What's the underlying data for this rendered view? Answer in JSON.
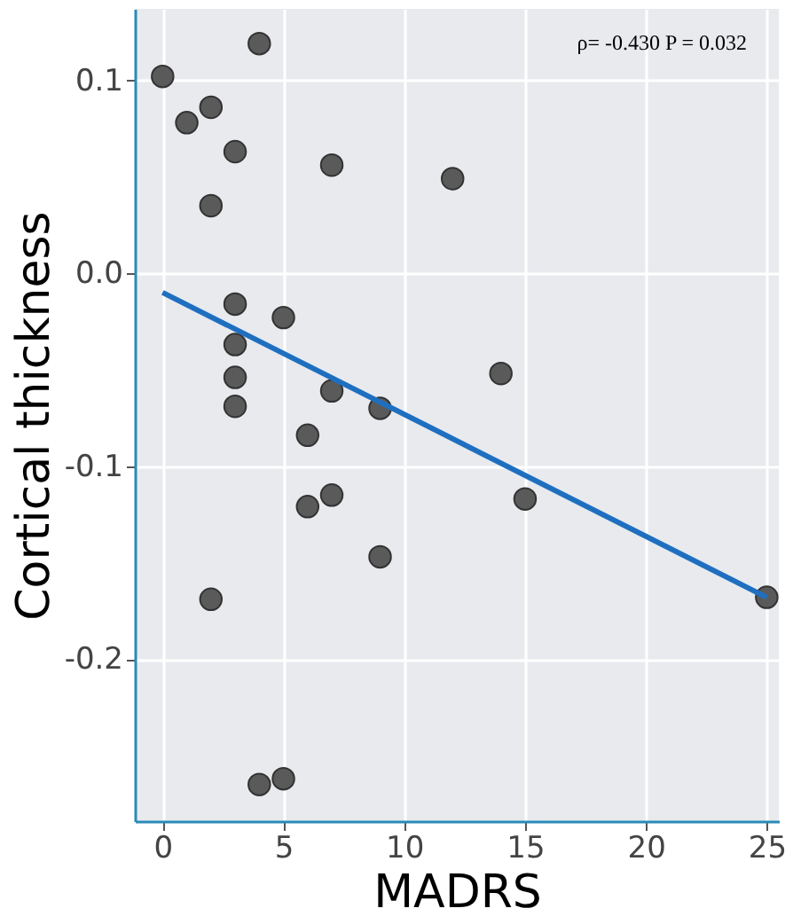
{
  "chart_data": {
    "type": "scatter",
    "xlabel": "MADRS",
    "ylabel": "Cortical thickness",
    "annotations": [
      "ρ= -0.430 P = 0.032"
    ],
    "xlim": [
      -1.15,
      25.5
    ],
    "ylim": [
      -0.284,
      0.137
    ],
    "xticks": [
      0,
      5,
      10,
      15,
      20,
      25
    ],
    "yticks": [
      {
        "value": -0.2,
        "label": "-0.2"
      },
      {
        "value": -0.1,
        "label": "-0.1"
      },
      {
        "value": 0,
        "label": "0.0"
      },
      {
        "value": 0.1,
        "label": "0.1"
      }
    ],
    "grid": true,
    "series": [
      {
        "marker": "circle",
        "color": "#5a5a5a",
        "x": [
          0,
          1,
          2,
          2,
          2,
          3,
          3,
          3,
          3,
          3,
          4,
          4,
          5,
          5,
          6,
          6,
          7,
          7,
          7,
          9,
          9,
          12,
          14,
          15,
          25
        ],
        "values": [
          0.102,
          0.078,
          0.086,
          0.035,
          -0.169,
          0.063,
          -0.016,
          -0.037,
          -0.054,
          -0.069,
          0.119,
          -0.265,
          -0.262,
          -0.023,
          -0.084,
          -0.121,
          0.056,
          -0.061,
          -0.115,
          -0.07,
          -0.147,
          0.049,
          -0.052,
          -0.117,
          -0.168
        ]
      },
      {
        "type": "line",
        "color": "#1f6fc0",
        "x": [
          0,
          25
        ],
        "values": [
          -0.01,
          -0.168
        ]
      }
    ]
  }
}
